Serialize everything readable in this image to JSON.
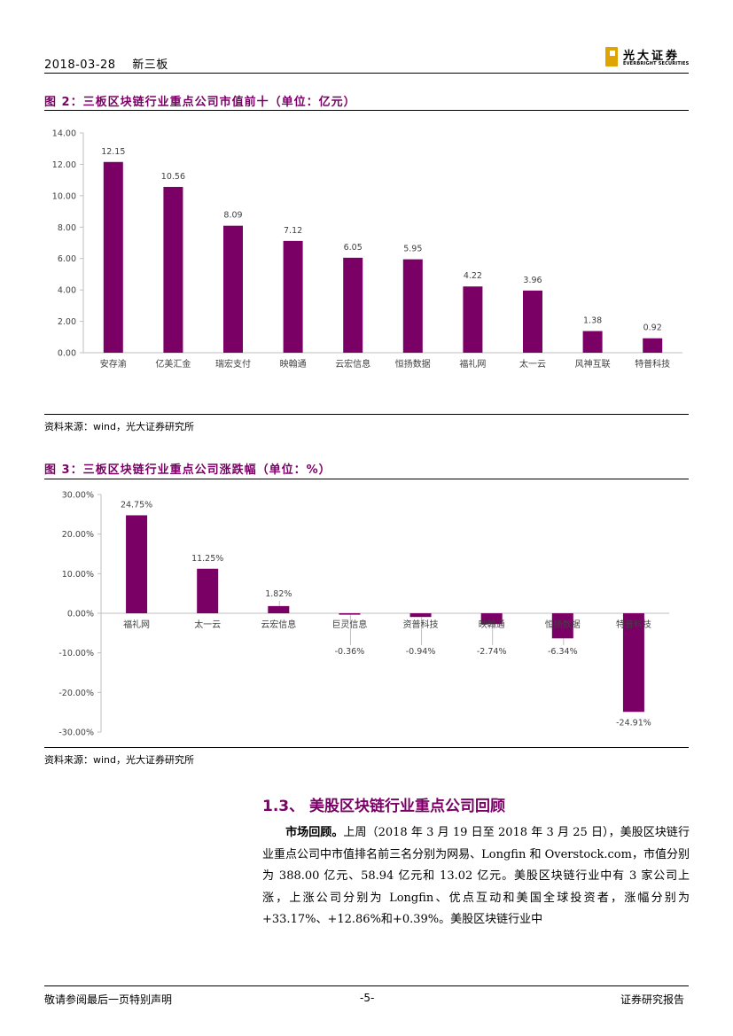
{
  "header": {
    "date": "2018-03-28",
    "category": "新三板",
    "logo": {
      "name_cn": "光大证券",
      "name_en": "EVERBRIGHT SECURITIES"
    }
  },
  "figure2": {
    "title": "图 2：三板区块链行业重点公司市值前十（单位：亿元）",
    "source": "资料来源：wind，光大证券研究所"
  },
  "figure3": {
    "title": "图 3：三板区块链行业重点公司涨跌幅（单位：%）",
    "source": "资料来源：wind，光大证券研究所"
  },
  "chart_data": [
    {
      "type": "bar",
      "categories": [
        "安存渝",
        "亿美汇金",
        "瑞宏支付",
        "映翰通",
        "云宏信息",
        "恒扬数据",
        "福礼网",
        "太一云",
        "风神互联",
        "特普科技"
      ],
      "values": [
        12.15,
        10.56,
        8.09,
        7.12,
        6.05,
        5.95,
        4.22,
        3.96,
        1.38,
        0.92
      ],
      "labels": [
        "12.15",
        "10.56",
        "8.09",
        "7.12",
        "6.05",
        "5.95",
        "4.22",
        "3.96",
        "1.38",
        "0.92"
      ],
      "yticks": [
        "0.00",
        "2.00",
        "4.00",
        "6.00",
        "8.00",
        "10.00",
        "12.00",
        "14.00"
      ],
      "ylim": [
        0,
        14
      ],
      "color": "#7b0066",
      "grid": false
    },
    {
      "type": "bar",
      "categories": [
        "福礼网",
        "太一云",
        "云宏信息",
        "巨灵信息",
        "资普科技",
        "映翰通",
        "恒扬数据",
        "特普科技"
      ],
      "values": [
        24.75,
        11.25,
        1.82,
        -0.36,
        -0.94,
        -2.74,
        -6.34,
        -24.91
      ],
      "labels": [
        "24.75%",
        "11.25%",
        "1.82%",
        "-0.36%",
        "-0.94%",
        "-2.74%",
        "-6.34%",
        "-24.91%"
      ],
      "yticks": [
        "-30.00%",
        "-20.00%",
        "-10.00%",
        "0.00%",
        "10.00%",
        "20.00%",
        "30.00%"
      ],
      "ylim": [
        -30,
        30
      ],
      "color": "#7b0066",
      "grid": false
    }
  ],
  "section": {
    "title": "1.3、 美股区块链行业重点公司回顾",
    "lead": "市场回顾。",
    "text": "上周（2018 年 3 月 19 日至 2018 年 3 月 25 日），美股区块链行业重点公司中市值排名前三名分别为网易、Longfin 和 Overstock.com，市值分别为 388.00 亿元、58.94 亿元和 13.02 亿元。美股区块链行业中有 3 家公司上涨，上涨公司分别为 Longfin、优点互动和美国全球投资者，涨幅分别为+33.17%、+12.86%和+0.39%。美股区块链行业中"
  },
  "footer": {
    "left": "敬请参阅最后一页特别声明",
    "page": "-5-",
    "right": "证券研究报告"
  }
}
